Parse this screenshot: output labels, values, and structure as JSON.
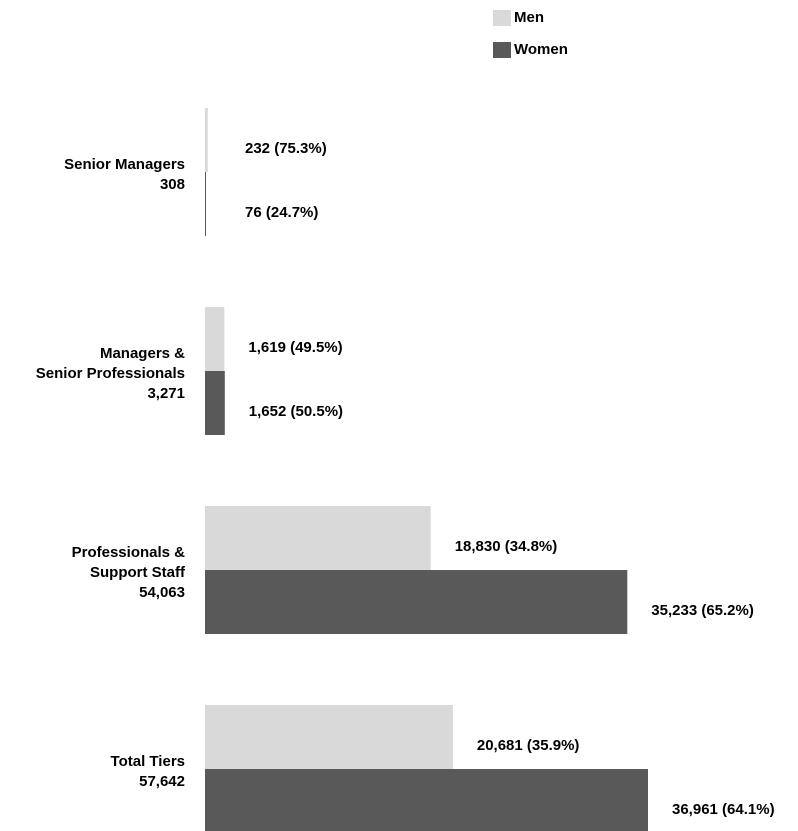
{
  "chart_data": {
    "type": "bar",
    "orientation": "horizontal",
    "categories": [
      [
        "Senior Managers",
        "308"
      ],
      [
        "Managers &",
        "Senior Professionals",
        "3,271"
      ],
      [
        "Professionals &",
        "Support Staff",
        "54,063"
      ],
      [
        "Total Tiers",
        "57,642"
      ]
    ],
    "series": [
      {
        "name": "Men",
        "color": "#d9d9d9",
        "values": [
          232,
          1619,
          18830,
          20681
        ],
        "value_labels": [
          "232 (75.3%)",
          "1,619 (49.5%)",
          "18,830 (34.8%)",
          "20,681 (35.9%)"
        ]
      },
      {
        "name": "Women",
        "color": "#595959",
        "values": [
          76,
          1652,
          35233,
          36961
        ],
        "value_labels": [
          "76 (24.7%)",
          "1,652 (50.5%)",
          "35,233 (65.2%)",
          "36,961 (64.1%)"
        ]
      }
    ]
  }
}
